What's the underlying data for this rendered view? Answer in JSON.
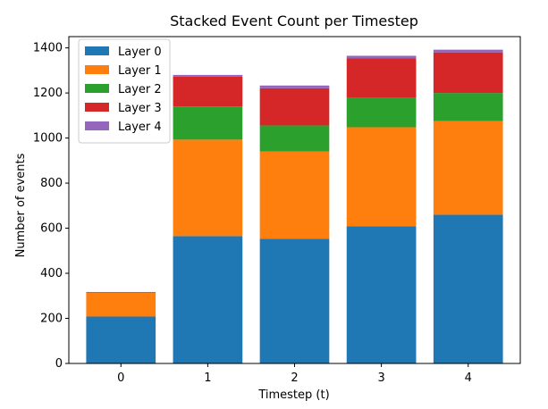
{
  "chart_data": {
    "type": "bar",
    "stacked": true,
    "title": "Stacked Event Count per Timestep",
    "xlabel": "Timestep (t)",
    "ylabel": "Number of events",
    "categories": [
      "0",
      "1",
      "2",
      "3",
      "4"
    ],
    "ylim": [
      0,
      1450
    ],
    "yticks": [
      0,
      200,
      400,
      600,
      800,
      1000,
      1200,
      1400
    ],
    "legend_position": "top-left",
    "grid": false,
    "series": [
      {
        "name": "Layer 0",
        "color": "#1f77b4",
        "values": [
          208,
          565,
          553,
          608,
          660
        ]
      },
      {
        "name": "Layer 1",
        "color": "#ff7f0e",
        "values": [
          105,
          428,
          388,
          440,
          415
        ]
      },
      {
        "name": "Layer 2",
        "color": "#2ca02c",
        "values": [
          3,
          147,
          115,
          130,
          125
        ]
      },
      {
        "name": "Layer 3",
        "color": "#d62728",
        "values": [
          1,
          132,
          165,
          175,
          180
        ]
      },
      {
        "name": "Layer 4",
        "color": "#9467bd",
        "values": [
          0,
          8,
          12,
          12,
          12
        ]
      }
    ]
  }
}
